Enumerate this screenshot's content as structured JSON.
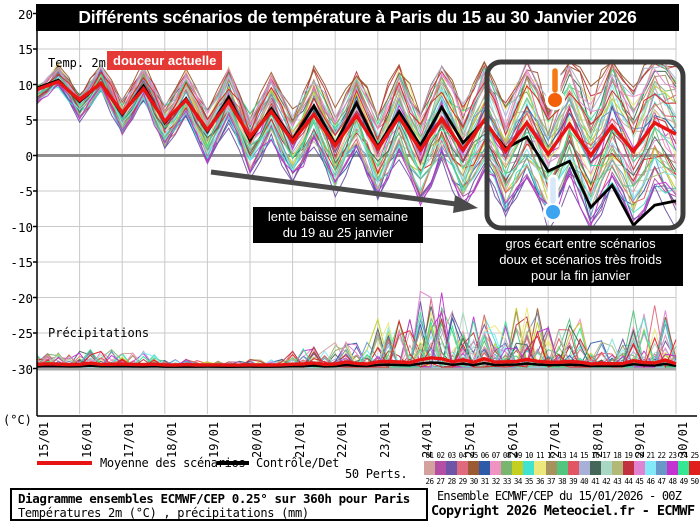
{
  "title": "Différents scénarios de température à Paris du 15 au 30 Janvier 2026",
  "plot": {
    "temp_label": "Temp. 2m",
    "badge": "douceur actuelle",
    "precip_label": "Précipitations",
    "unit": "(°C)",
    "y_ticks": [
      "20",
      "15",
      "10",
      "5",
      "0",
      "-5",
      "-10",
      "-15",
      "-20",
      "-25",
      "-30"
    ],
    "x_ticks": [
      "15/01",
      "16/01",
      "17/01",
      "18/01",
      "19/01",
      "20/01",
      "21/01",
      "22/01",
      "23/01",
      "24/01",
      "25/01",
      "26/01",
      "27/01",
      "28/01",
      "29/01",
      "30/01"
    ]
  },
  "annotations": {
    "slow_drop_line1": "lente baisse en semaine",
    "slow_drop_line2": "du 19 au 25 janvier",
    "gap_line1": "gros écart entre scénarios",
    "gap_line2": "doux et scénarios très froids",
    "gap_line3": "pour la fin janvier"
  },
  "legend": {
    "mean_label": "Moyenne des scénarios",
    "control_label": "Contrôle/Det",
    "perts_label": "50 Perts.",
    "pert_numbers_top": [
      "01",
      "02",
      "03",
      "04",
      "05",
      "06",
      "07",
      "08",
      "09",
      "10",
      "11",
      "12",
      "13",
      "14",
      "15",
      "16",
      "17",
      "18",
      "19",
      "20",
      "21",
      "22",
      "23",
      "24",
      "25"
    ],
    "pert_numbers_bottom": [
      "26",
      "27",
      "28",
      "29",
      "30",
      "31",
      "32",
      "33",
      "34",
      "35",
      "36",
      "37",
      "38",
      "39",
      "40",
      "41",
      "42",
      "43",
      "44",
      "45",
      "46",
      "47",
      "48",
      "49",
      "50"
    ]
  },
  "footer": {
    "box_line1": "Diagramme ensembles ECMWF/CEP 0.25° sur 360h pour Paris",
    "box_line2": "Températures 2m (°C) , précipitations (mm)",
    "right_line1": "Ensemble ECMWF/CEP du 15/01/2026 - 00Z",
    "right_line2": "Copyright 2026 Meteociel.fr - ECMWF"
  },
  "colors": {
    "mean": "#e81414",
    "control": "#000000",
    "badge_bg": "#e53935",
    "grid": "#c9c9c9",
    "zero_line": "#8f8f8f",
    "precip_baseline": "#a8a8a8",
    "arrow": "#4a4a4a",
    "highlight_border": "#3c3c3c",
    "thermo_warm": "#f2600a",
    "thermo_cold": "#3da5f0",
    "palette": [
      "#d4a29c",
      "#b34fa5",
      "#6f55a8",
      "#e06a7d",
      "#9c5a32",
      "#2d5ba8",
      "#ef93c2",
      "#79b56f",
      "#c3d022",
      "#3fe3cf",
      "#ece87b",
      "#a6925d",
      "#53c57e",
      "#e25563",
      "#a9b0d8",
      "#44675a",
      "#a8d8c4",
      "#b1b878",
      "#c23140",
      "#e083d2",
      "#83e8f8",
      "#6898c8",
      "#c233d2",
      "#35e693",
      "#e01f1f"
    ]
  },
  "chart_data": {
    "type": "line",
    "title": "Différents scénarios de température à Paris du 15 au 30 Janvier 2026",
    "xlabel": "date (dd/mm), 15/01 to 30/01, values every 12h starting 15/01 00Z",
    "ylabel": "(°C)",
    "ylim": [
      -36,
      21
    ],
    "x_dates": [
      "15/01",
      "16/01",
      "17/01",
      "18/01",
      "19/01",
      "20/01",
      "21/01",
      "22/01",
      "23/01",
      "24/01",
      "25/01",
      "26/01",
      "27/01",
      "28/01",
      "29/01",
      "30/01"
    ],
    "grid": true,
    "series": [
      {
        "name": "Moyenne des scénarios",
        "color": "#e81414",
        "step_hours": 12,
        "values": [
          9.3,
          10.4,
          7.8,
          10.2,
          6.0,
          9.4,
          4.8,
          7.8,
          3.6,
          7.6,
          2.6,
          6.2,
          2.0,
          5.8,
          1.4,
          5.6,
          1.0,
          5.4,
          0.8,
          5.2,
          0.8,
          5.0,
          0.6,
          4.6,
          0.2,
          4.4,
          0.0,
          4.2,
          0.6,
          4.6,
          3.0
        ]
      },
      {
        "name": "Contrôle/Det",
        "color": "#000000",
        "step_hours": 12,
        "values": [
          9.5,
          10.6,
          7.6,
          10.2,
          5.8,
          9.8,
          4.6,
          8.0,
          3.4,
          8.2,
          2.2,
          6.6,
          2.2,
          7.0,
          1.6,
          7.4,
          1.2,
          6.2,
          1.4,
          6.8,
          1.8,
          4.8,
          1.0,
          2.6,
          -2.2,
          -0.8,
          -7.3,
          -4.2,
          -9.8,
          -7.0,
          -6.4
        ]
      }
    ],
    "ensemble": {
      "members": 50,
      "spread_start_c": 0.6,
      "spread_end_c": 6.9,
      "envelope_end_c": [
        -10.0,
        12.5
      ],
      "note": "50 perturbed members fan out from ~9°C on 15/01 (tight) to a -10..+12.5°C spread by 30/01"
    },
    "precip": {
      "baseline_at_c": -30,
      "unit": "mm",
      "daily_max_intensity": [
        14,
        18,
        16,
        8,
        6,
        8,
        20,
        26,
        50,
        80,
        55,
        60,
        50,
        30,
        65,
        30
      ],
      "note": "ensemble precipitation spikes plotted above the -30 baseline; strongest signals 23/01-27/01 and 29/01"
    }
  }
}
